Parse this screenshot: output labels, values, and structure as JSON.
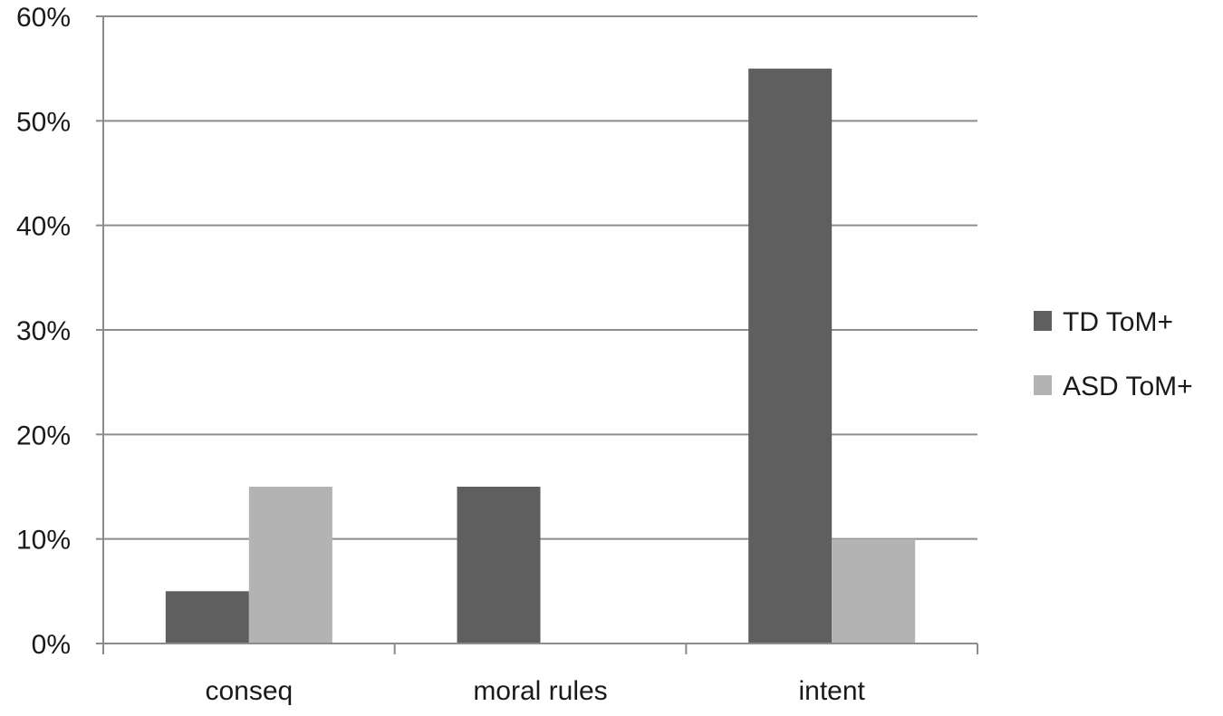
{
  "chart_data": {
    "type": "bar",
    "title": "",
    "xlabel": "",
    "ylabel": "",
    "categories": [
      "conseq",
      "moral rules",
      "intent"
    ],
    "series": [
      {
        "name": "TD ToM+",
        "values": [
          5,
          15,
          55
        ],
        "color": "#5f5f5f"
      },
      {
        "name": "ASD ToM+",
        "values": [
          15,
          0,
          10
        ],
        "color": "#b3b3b3"
      }
    ],
    "ylim": [
      0,
      60
    ],
    "yticks": [
      "0%",
      "10%",
      "20%",
      "30%",
      "40%",
      "50%",
      "60%"
    ],
    "grid": true,
    "legend_position": "right",
    "axis_color": "#8c8c8c",
    "grid_color": "#8c8c8c"
  }
}
